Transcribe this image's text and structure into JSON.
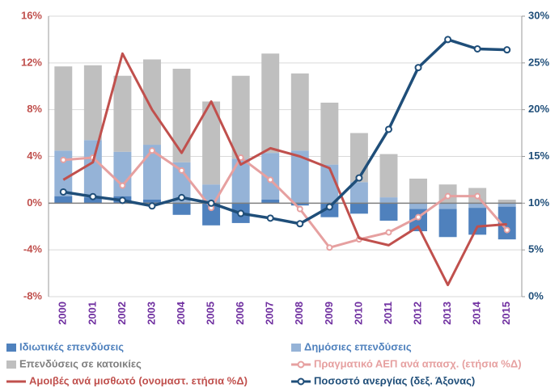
{
  "chart_data": {
    "type": "combo",
    "stacked": true,
    "grid": true,
    "categories": [
      "2000",
      "2001",
      "2002",
      "2003",
      "2004",
      "2005",
      "2006",
      "2007",
      "2008",
      "2009",
      "2010",
      "2011",
      "2012",
      "2013",
      "2014",
      "2015"
    ],
    "ylim": [
      -8,
      16
    ],
    "yticks": [
      {
        "value": -8,
        "label": "-8%"
      },
      {
        "value": -4,
        "label": "-4%"
      },
      {
        "value": 0,
        "label": "0%"
      },
      {
        "value": 4,
        "label": "4%"
      },
      {
        "value": 8,
        "label": "8%"
      },
      {
        "value": 12,
        "label": "12%"
      },
      {
        "value": 16,
        "label": "16%"
      }
    ],
    "y2lim": [
      0,
      30
    ],
    "y2ticks": [
      {
        "value": 0,
        "label": "0%"
      },
      {
        "value": 5,
        "label": "5%"
      },
      {
        "value": 10,
        "label": "10%"
      },
      {
        "value": 15,
        "label": "15%"
      },
      {
        "value": 20,
        "label": "20%"
      },
      {
        "value": 25,
        "label": "25%"
      },
      {
        "value": 30,
        "label": "30%"
      }
    ],
    "series": [
      {
        "name": "Ιδιωτικές επενδύσεις",
        "type": "bar",
        "color": "#4f81bd",
        "values": [
          0.6,
          0.5,
          0.6,
          0.3,
          -1.0,
          -1.9,
          -1.7,
          0.3,
          -0.2,
          -1.2,
          -0.9,
          -1.5,
          -1.9,
          -2.4,
          -2.3,
          -2.8
        ]
      },
      {
        "name": "Δημόσιες επενδύσεις",
        "type": "bar",
        "color": "#95b3d7",
        "values": [
          3.9,
          4.9,
          3.8,
          4.7,
          3.5,
          1.6,
          3.8,
          4.0,
          4.5,
          3.3,
          1.8,
          0.5,
          -0.5,
          -0.5,
          -0.4,
          -0.3
        ]
      },
      {
        "name": "Επενδύσεις σε κατοικίες",
        "type": "bar",
        "color": "#bfbfbf",
        "values": [
          7.2,
          6.4,
          6.5,
          7.3,
          8.0,
          7.1,
          7.1,
          8.5,
          6.6,
          5.3,
          4.2,
          3.7,
          2.1,
          1.6,
          1.3,
          0.3
        ]
      },
      {
        "name": "Πραγματικό ΑΕΠ ανά απασχ. (ετήσια %Δ)",
        "type": "line",
        "markers": true,
        "color": "#e6a0a0",
        "values": [
          3.7,
          3.9,
          1.5,
          4.5,
          2.8,
          -0.4,
          3.9,
          2.0,
          -0.5,
          -3.8,
          -3.1,
          -2.5,
          -1.2,
          0.6,
          0.6,
          -2.3
        ]
      },
      {
        "name": "Αμοιβές ανά μισθωτό (ονομαστ. ετήσια %Δ)",
        "type": "line",
        "markers": false,
        "color": "#c0504d",
        "values": [
          2.0,
          3.5,
          12.8,
          8.0,
          4.3,
          8.7,
          3.3,
          4.7,
          4.0,
          3.0,
          -3.0,
          -3.6,
          -2.0,
          -7.0,
          -2.0,
          -1.8
        ]
      },
      {
        "name": "Ποσοστό ανεργίας (δεξ. Άξονας)",
        "type": "line",
        "markers": true,
        "axis": "y2",
        "color": "#1f4e79",
        "values": [
          11.2,
          10.7,
          10.3,
          9.7,
          10.6,
          10.0,
          8.9,
          8.4,
          7.8,
          9.6,
          12.7,
          17.9,
          24.5,
          27.5,
          26.5,
          26.4
        ]
      }
    ]
  }
}
